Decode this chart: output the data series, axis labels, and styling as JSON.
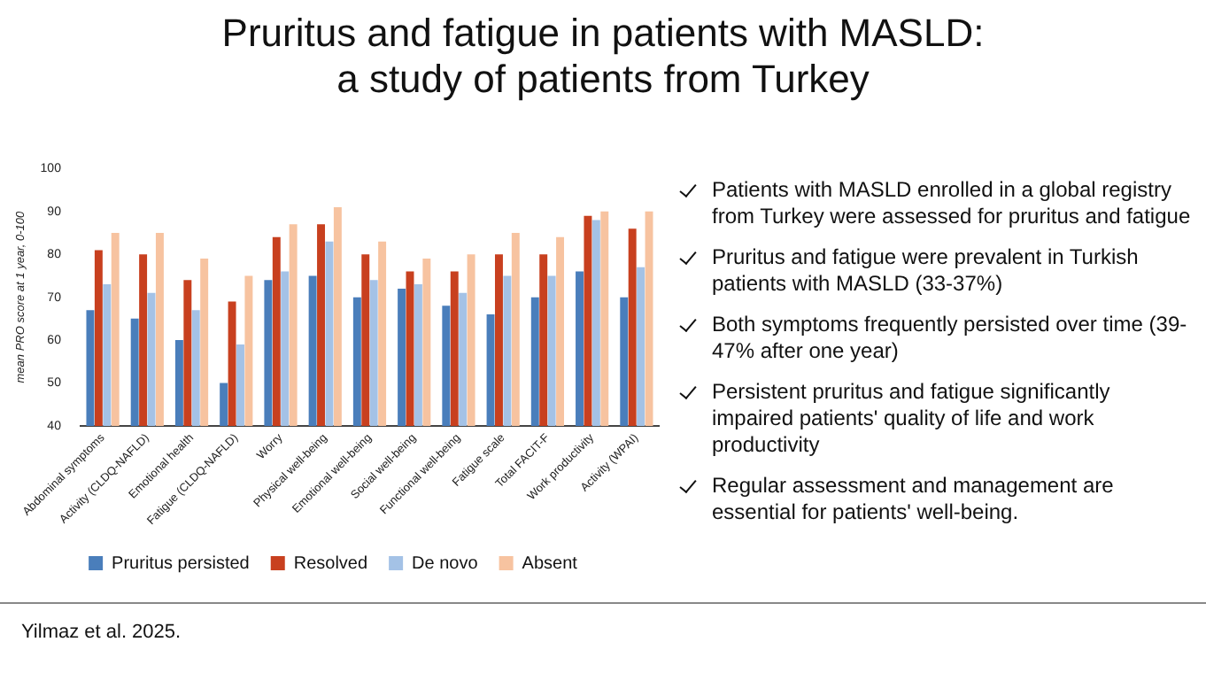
{
  "chart_data": {
    "type": "bar",
    "title": "Pruritus and fatigue in patients with MASLD:\na study of patients from Turkey",
    "ylabel": "mean PRO score at 1 year, 0-100",
    "categories": [
      "Abdominal symptoms",
      "Activity (CLDQ-NAFLD)",
      "Emotional health",
      "Fatigue (CLDQ-NAFLD)",
      "Worry",
      "Physical well-being",
      "Emotional well-being",
      "Social well-being",
      "Functional well-being",
      "Fatigue scale",
      "Total FACIT-F",
      "Work productivity",
      "Activity (WPAI)"
    ],
    "series": [
      {
        "name": "Pruritus persisted",
        "color": "#4a7ebb",
        "values": [
          67,
          65,
          60,
          50,
          74,
          75,
          70,
          72,
          68,
          66,
          70,
          76,
          70
        ]
      },
      {
        "name": "Resolved",
        "color": "#c8401f",
        "values": [
          81,
          80,
          74,
          69,
          84,
          87,
          80,
          76,
          76,
          80,
          80,
          89,
          86
        ]
      },
      {
        "name": "De novo",
        "color": "#a4c2e6",
        "values": [
          73,
          71,
          67,
          59,
          76,
          83,
          74,
          73,
          71,
          75,
          75,
          88,
          77
        ]
      },
      {
        "name": "Absent",
        "color": "#f7c3a0",
        "values": [
          85,
          85,
          79,
          75,
          87,
          91,
          83,
          79,
          80,
          85,
          84,
          90,
          90
        ]
      }
    ],
    "ylim": [
      40,
      100
    ],
    "yticks": [
      40,
      50,
      60,
      70,
      80,
      90,
      100
    ],
    "grid": false,
    "legend": "bottom",
    "annotations": [
      "Patients with MASLD enrolled in a global registry from Turkey were assessed for pruritus and fatigue",
      "Pruritus and fatigue were prevalent in Turkish patients with MASLD (33-37%)",
      "Both symptoms frequently persisted over time (39-47% after one year)",
      "Persistent pruritus and fatigue significantly impaired patients' quality of life and work productivity",
      "Regular assessment and management are essential for patients' well-being.",
      "Yilmaz et al. 2025."
    ]
  }
}
